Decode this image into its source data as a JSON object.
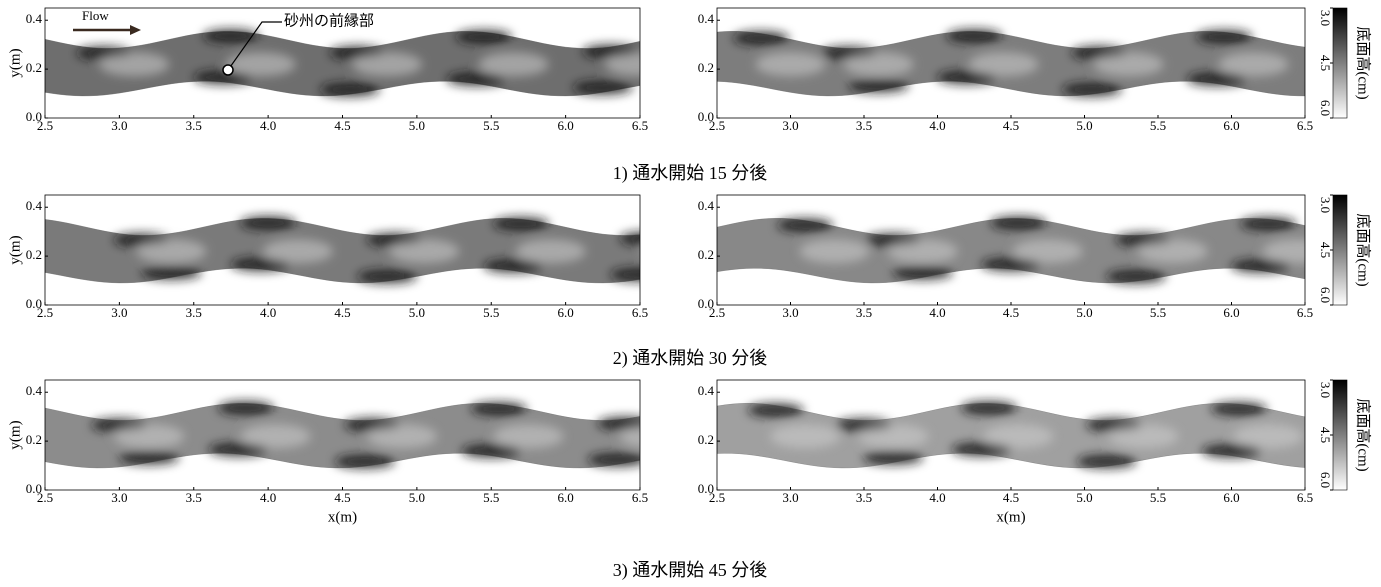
{
  "chart_data": [
    {
      "type": "heatmap",
      "xlim": [
        2.5,
        6.5
      ],
      "ylim": [
        0,
        0.45
      ],
      "ylabel": "y(m)",
      "xticks": [
        2.5,
        {
          "value": 3,
          "label": "3.0"
        },
        3.5,
        {
          "value": 4,
          "label": "4.0"
        },
        4.5,
        {
          "value": 5,
          "label": "5.0"
        },
        5.5,
        {
          "value": 6,
          "label": "6.0"
        },
        6.5
      ],
      "yticks": [
        {
          "value": 0,
          "label": "0.0"
        },
        0.2,
        0.4
      ],
      "annotations": [
        "Flow",
        "砂州の前縁部"
      ]
    },
    {
      "type": "heatmap",
      "xlim": [
        2.5,
        6.5
      ],
      "ylim": [
        0,
        0.45
      ],
      "xticks": [
        2.5,
        {
          "value": 3,
          "label": "3.0"
        },
        3.5,
        {
          "value": 4,
          "label": "4.0"
        },
        4.5,
        {
          "value": 5,
          "label": "5.0"
        },
        5.5,
        {
          "value": 6,
          "label": "6.0"
        },
        6.5
      ],
      "yticks": [
        {
          "value": 0,
          "label": "0.0"
        },
        0.2,
        0.4
      ],
      "colorbar": {
        "label": "底面高(cm)",
        "lim": [
          3,
          6
        ],
        "colors": [
          "#000000",
          "#ffffff"
        ],
        "ticks": [
          {
            "value": 3,
            "label": "3.0"
          },
          4.5,
          {
            "value": 6,
            "label": "6.0"
          }
        ]
      }
    },
    {
      "type": "heatmap",
      "xlim": [
        2.5,
        6.5
      ],
      "ylim": [
        0,
        0.45
      ],
      "ylabel": "y(m)",
      "xticks": [
        2.5,
        {
          "value": 3,
          "label": "3.0"
        },
        3.5,
        {
          "value": 4,
          "label": "4.0"
        },
        4.5,
        {
          "value": 5,
          "label": "5.0"
        },
        5.5,
        {
          "value": 6,
          "label": "6.0"
        },
        6.5
      ],
      "yticks": [
        {
          "value": 0,
          "label": "0.0"
        },
        0.2,
        0.4
      ]
    },
    {
      "type": "heatmap",
      "xlim": [
        2.5,
        6.5
      ],
      "ylim": [
        0,
        0.45
      ],
      "xticks": [
        2.5,
        {
          "value": 3,
          "label": "3.0"
        },
        3.5,
        {
          "value": 4,
          "label": "4.0"
        },
        4.5,
        {
          "value": 5,
          "label": "5.0"
        },
        5.5,
        {
          "value": 6,
          "label": "6.0"
        },
        6.5
      ],
      "yticks": [
        {
          "value": 0,
          "label": "0.0"
        },
        0.2,
        0.4
      ],
      "colorbar": {
        "label": "底面高(cm)",
        "lim": [
          3,
          6
        ],
        "colors": [
          "#000000",
          "#ffffff"
        ],
        "ticks": [
          {
            "value": 3,
            "label": "3.0"
          },
          4.5,
          {
            "value": 6,
            "label": "6.0"
          }
        ]
      }
    },
    {
      "type": "heatmap",
      "xlim": [
        2.5,
        6.5
      ],
      "ylim": [
        0,
        0.45
      ],
      "ylabel": "y(m)",
      "xlabel": "x(m)",
      "xticks": [
        2.5,
        {
          "value": 3,
          "label": "3.0"
        },
        3.5,
        {
          "value": 4,
          "label": "4.0"
        },
        4.5,
        {
          "value": 5,
          "label": "5.0"
        },
        5.5,
        {
          "value": 6,
          "label": "6.0"
        },
        6.5
      ],
      "yticks": [
        {
          "value": 0,
          "label": "0.0"
        },
        0.2,
        0.4
      ]
    },
    {
      "type": "heatmap",
      "xlim": [
        2.5,
        6.5
      ],
      "ylim": [
        0,
        0.45
      ],
      "xlabel": "x(m)",
      "xticks": [
        2.5,
        {
          "value": 3,
          "label": "3.0"
        },
        3.5,
        {
          "value": 4,
          "label": "4.0"
        },
        4.5,
        {
          "value": 5,
          "label": "5.0"
        },
        5.5,
        {
          "value": 6,
          "label": "6.0"
        },
        6.5
      ],
      "yticks": [
        {
          "value": 0,
          "label": "0.0"
        },
        0.2,
        0.4
      ],
      "colorbar": {
        "label": "底面高(cm)",
        "lim": [
          3,
          6
        ],
        "colors": [
          "#000000",
          "#ffffff"
        ],
        "ticks": [
          {
            "value": 3,
            "label": "3.0"
          },
          4.5,
          {
            "value": 6,
            "label": "6.0"
          }
        ]
      }
    }
  ],
  "captions": [
    "1) 通水開始 15 分後",
    "2) 通水開始 30 分後",
    "3) 通水開始 45 分後"
  ]
}
